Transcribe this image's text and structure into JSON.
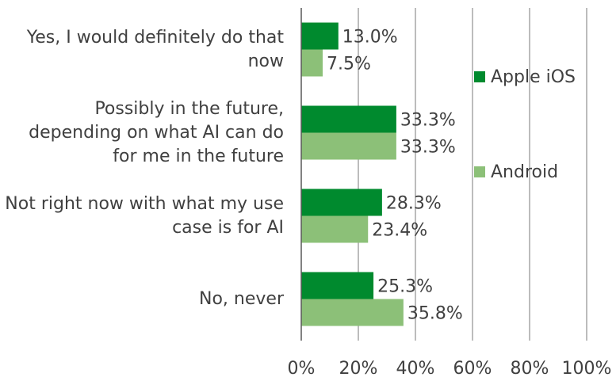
{
  "chart_data": {
    "type": "hbar",
    "categories": [
      "Yes, I would definitely do that now",
      "Possibly in the future, depending on what AI can do for me in the future",
      "Not right now with what my use case is for AI",
      "No, never"
    ],
    "series": [
      {
        "name": "Apple iOS",
        "color": "#008a2e",
        "values": [
          13.0,
          33.3,
          28.3,
          25.3
        ],
        "value_labels": [
          "13.0%",
          "33.3%",
          "28.3%",
          "25.3%"
        ]
      },
      {
        "name": "Android",
        "color": "#8cc078",
        "values": [
          7.5,
          33.3,
          23.4,
          35.8
        ],
        "value_labels": [
          "7.5%",
          "33.3%",
          "23.4%",
          "35.8%"
        ]
      }
    ],
    "xlim": [
      0,
      100
    ],
    "xticks": [
      {
        "value": 0,
        "label": "0%"
      },
      {
        "value": 20,
        "label": "20%"
      },
      {
        "value": 40,
        "label": "40%"
      },
      {
        "value": 60,
        "label": "60%"
      },
      {
        "value": 80,
        "label": "80%"
      },
      {
        "value": 100,
        "label": "100%"
      }
    ],
    "grid": true,
    "legend": "right"
  }
}
